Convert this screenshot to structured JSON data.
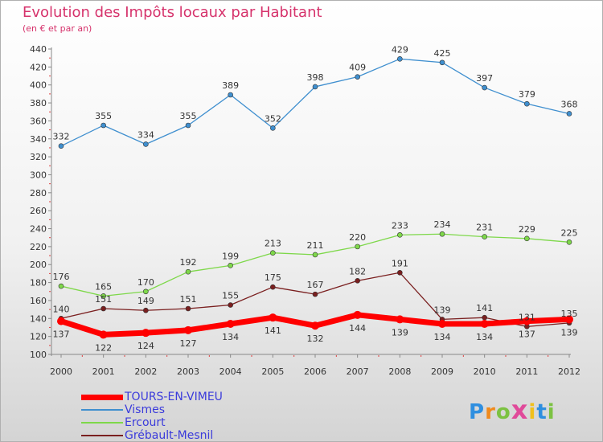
{
  "title": "Evolution des Impôts locaux par Habitant",
  "subtitle": "(en € et par an)",
  "logo": {
    "letters": [
      "P",
      "r",
      "o",
      "x",
      "i",
      "t",
      "i"
    ],
    "colors": [
      "#2f8fe0",
      "#f08a1c",
      "#7cc242",
      "#e04a9a",
      "#f0c01c",
      "#2f8fe0",
      "#7cc242"
    ]
  },
  "chart_data": {
    "type": "line",
    "title": "Evolution des Impôts locaux par Habitant",
    "subtitle": "(en € et par an)",
    "xlabel": "",
    "ylabel": "",
    "x": [
      "2000",
      "2001",
      "2002",
      "2003",
      "2004",
      "2005",
      "2006",
      "2007",
      "2008",
      "2009",
      "2010",
      "2011",
      "2012"
    ],
    "ylim": [
      100,
      440
    ],
    "yticks": [
      "100",
      "120",
      "140",
      "160",
      "180",
      "200",
      "220",
      "240",
      "260",
      "280",
      "300",
      "320",
      "340",
      "360",
      "380",
      "400",
      "420",
      "440"
    ],
    "grid": false,
    "legend": "bottom-left",
    "series": [
      {
        "name": "TOURS-EN-VIMEU",
        "color": "#ff0000",
        "values": [
          137,
          122,
          124,
          127,
          134,
          141,
          132,
          144,
          139,
          134,
          134,
          137,
          139
        ],
        "labels": [
          "137",
          "122",
          "124",
          "127",
          "134",
          "141",
          "132",
          "144",
          "139",
          "134",
          "134",
          "137",
          "139"
        ]
      },
      {
        "name": "Vismes",
        "color": "#3f8fcf",
        "values": [
          332,
          355,
          334,
          355,
          389,
          352,
          398,
          409,
          429,
          425,
          397,
          379,
          368
        ],
        "labels": [
          "332",
          "355",
          "334",
          "355",
          "389",
          "352",
          "398",
          "409",
          "429",
          "425",
          "397",
          "379",
          "368"
        ]
      },
      {
        "name": "Ercourt",
        "color": "#7ed84a",
        "values": [
          176,
          165,
          170,
          192,
          199,
          213,
          211,
          220,
          233,
          234,
          231,
          229,
          225
        ],
        "labels": [
          "176",
          "165",
          "170",
          "192",
          "199",
          "213",
          "211",
          "220",
          "233",
          "234",
          "231",
          "229",
          "225"
        ]
      },
      {
        "name": "Grébault-Mesnil",
        "color": "#7a1f1f",
        "values": [
          140,
          151,
          149,
          151,
          155,
          175,
          167,
          182,
          191,
          139,
          141,
          131,
          135
        ],
        "labels": [
          "140",
          "151",
          "149",
          "151",
          "155",
          "175",
          "167",
          "182",
          "191",
          "139",
          "141",
          "131",
          "135"
        ]
      }
    ]
  }
}
